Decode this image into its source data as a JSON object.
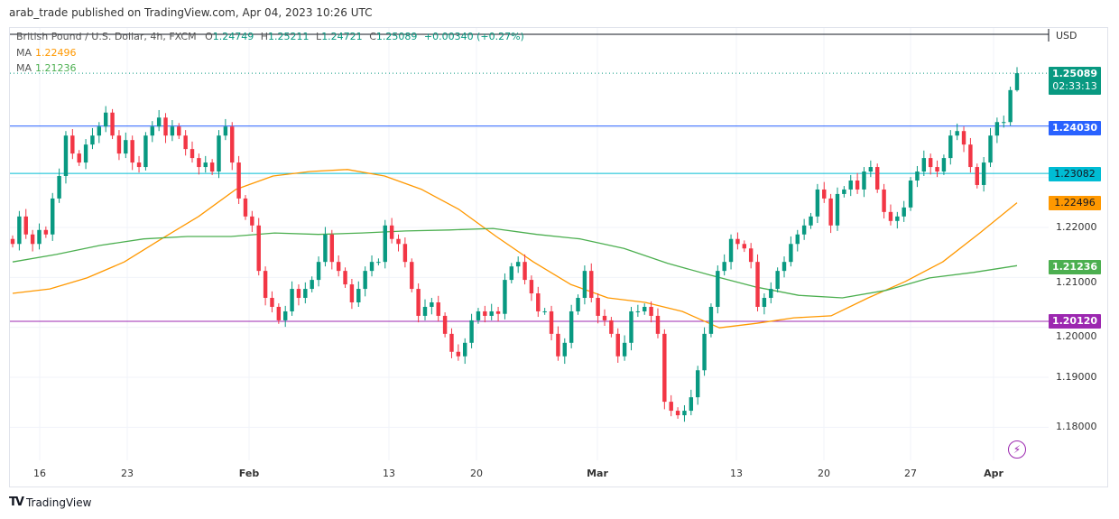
{
  "header": {
    "published": "arab_trade published on TradingView.com, Apr 04, 2023 10:26 UTC"
  },
  "legend": {
    "symbol": "British Pound / U.S. Dollar, 4h, FXCM",
    "o_label": "O",
    "o": "1.24749",
    "h_label": "H",
    "h": "1.25211",
    "l_label": "L",
    "l": "1.24721",
    "c_label": "C",
    "c": "1.25089",
    "change": "+0.00340 (+0.27%)",
    "ma1_label": "MA",
    "ma1": "1.22496",
    "ma2_label": "MA",
    "ma2": "1.21236"
  },
  "price_axis": {
    "currency": "USD",
    "ticks": [
      "1.22000",
      "1.21000",
      "1.20000",
      "1.19000",
      "1.18000"
    ],
    "last_price": "1.25089",
    "countdown": "02:33:13"
  },
  "time_axis": {
    "labels": [
      "16",
      "23",
      "Feb",
      "13",
      "20",
      "Mar",
      "13",
      "20",
      "27",
      "Apr"
    ]
  },
  "footer": {
    "brand": "TradingView"
  },
  "colors": {
    "up": "#089981",
    "down": "#f23645",
    "ma1": "#ff9800",
    "ma2": "#4caf50"
  },
  "chart_data": {
    "type": "candlestick",
    "symbol": "GBPUSD",
    "interval": "4h",
    "ylim": [
      1.175,
      1.258
    ],
    "grid": true,
    "last_candle": {
      "open": 1.24749,
      "high": 1.25211,
      "low": 1.24721,
      "close": 1.25089
    },
    "closes": [
      1.2167,
      1.2222,
      1.2186,
      1.2167,
      1.2195,
      1.2186,
      1.2258,
      1.2303,
      1.2384,
      1.2348,
      1.233,
      1.2366,
      1.2384,
      1.2402,
      1.243,
      1.2384,
      1.2348,
      1.2375,
      1.233,
      1.2321,
      1.2384,
      1.2402,
      1.242,
      1.2384,
      1.2402,
      1.2384,
      1.2357,
      1.2339,
      1.2321,
      1.233,
      1.2312,
      1.2384,
      1.2402,
      1.233,
      1.2258,
      1.2222,
      1.2204,
      1.2113,
      1.2059,
      1.2041,
      1.2014,
      1.2032,
      1.2077,
      1.2059,
      1.2077,
      1.2095,
      1.2131,
      1.2186,
      1.2131,
      1.2113,
      1.2086,
      1.205,
      1.2077,
      1.2113,
      1.2131,
      1.2131,
      1.2204,
      1.2177,
      1.2167,
      1.2131,
      1.2077,
      1.2023,
      1.2041,
      1.205,
      1.2023,
      1.1987,
      1.1951,
      1.1942,
      1.1969,
      1.2014,
      1.2032,
      1.2023,
      1.2032,
      1.2027,
      1.2095,
      1.2122,
      1.2131,
      1.2095,
      1.2068,
      1.2032,
      1.2032,
      1.1987,
      1.1942,
      1.1969,
      1.2032,
      1.2059,
      1.2113,
      1.2059,
      1.2023,
      1.2014,
      1.1987,
      1.1942,
      1.1969,
      1.2032,
      1.2032,
      1.2041,
      1.2023,
      1.1987,
      1.1851,
      1.1833,
      1.1824,
      1.1833,
      1.186,
      1.1914,
      1.1987,
      1.2041,
      1.2113,
      1.2131,
      1.2177,
      1.2167,
      1.2158,
      1.2131,
      1.2041,
      1.2059,
      1.2077,
      1.2113,
      1.2131,
      1.2167,
      1.2186,
      1.2204,
      1.2222,
      1.2276,
      1.2258,
      1.2204,
      1.2267,
      1.2276,
      1.2294,
      1.2276,
      1.2312,
      1.2321,
      1.2276,
      1.2231,
      1.2213,
      1.2222,
      1.224,
      1.2294,
      1.2312,
      1.2339,
      1.2321,
      1.2312,
      1.2339,
      1.2384,
      1.2393,
      1.2366,
      1.2321,
      1.2285,
      1.233,
      1.2384,
      1.2411,
      1.2411,
      1.2475,
      1.25089
    ],
    "series": [
      {
        "name": "MA",
        "color": "#ff9800",
        "values": [
          1.2068,
          1.2077,
          1.2099,
          1.2131,
          1.2177,
          1.2222,
          1.2276,
          1.2303,
          1.2312,
          1.2316,
          1.2303,
          1.2276,
          1.2236,
          1.2182,
          1.2131,
          1.2086,
          1.2059,
          1.205,
          1.2032,
          1.1999,
          1.2008,
          1.2019,
          1.2023,
          1.2059,
          1.2092,
          1.2131,
          1.2189,
          1.22496
        ]
      },
      {
        "name": "MA",
        "color": "#4caf50",
        "values": [
          1.2131,
          1.2146,
          1.2164,
          1.2177,
          1.2182,
          1.2182,
          1.2189,
          1.2186,
          1.2189,
          1.2193,
          1.2195,
          1.2198,
          1.2186,
          1.2177,
          1.2158,
          1.2128,
          1.2104,
          1.2081,
          1.2064,
          1.2059,
          1.2074,
          1.2099,
          1.211,
          1.21236
        ]
      }
    ],
    "horizontal_lines": [
      {
        "price": "1.24030",
        "color": "#2962ff"
      },
      {
        "price": "1.23082",
        "color": "#00bcd4"
      },
      {
        "price": "1.20120",
        "color": "#9c27b0"
      }
    ]
  }
}
